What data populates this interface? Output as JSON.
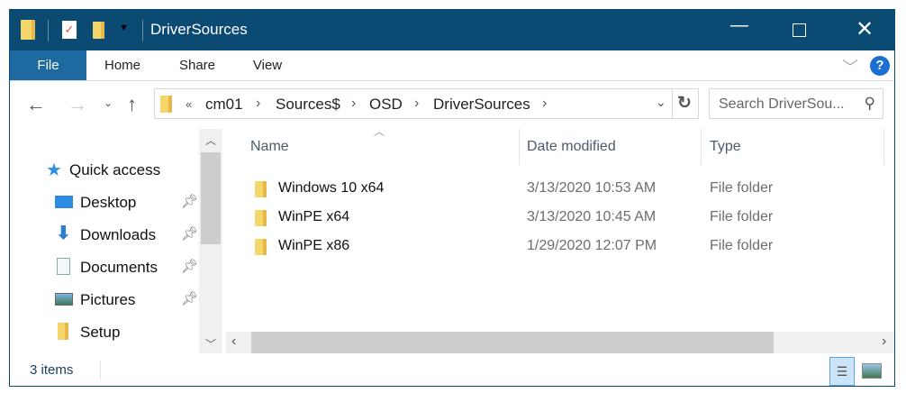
{
  "window": {
    "title": "DriverSources",
    "controls": [
      "minimize",
      "maximize",
      "close"
    ]
  },
  "ribbon": {
    "tabs": [
      "File",
      "Home",
      "Share",
      "View"
    ],
    "help": "?"
  },
  "address": {
    "overflow": "«",
    "crumbs": [
      "cm01",
      "Sources$",
      "OSD",
      "DriverSources"
    ]
  },
  "search": {
    "placeholder": "Search DriverSou..."
  },
  "nav": {
    "items": [
      {
        "label": "Quick access",
        "icon": "star-icon",
        "pinned": false
      },
      {
        "label": "Desktop",
        "icon": "desktop-icon",
        "pinned": true
      },
      {
        "label": "Downloads",
        "icon": "download-icon",
        "pinned": true
      },
      {
        "label": "Documents",
        "icon": "documents-icon",
        "pinned": true
      },
      {
        "label": "Pictures",
        "icon": "pictures-icon",
        "pinned": true
      },
      {
        "label": "Setup",
        "icon": "folder-icon",
        "pinned": false
      }
    ]
  },
  "columns": [
    "Name",
    "Date modified",
    "Type"
  ],
  "files": [
    {
      "name": "Windows 10 x64",
      "date": "3/13/2020 10:53 AM",
      "type": "File folder"
    },
    {
      "name": "WinPE x64",
      "date": "3/13/2020 10:45 AM",
      "type": "File folder"
    },
    {
      "name": "WinPE x86",
      "date": "1/29/2020 12:07 PM",
      "type": "File folder"
    }
  ],
  "status": {
    "count": "3 items"
  },
  "colors": {
    "titlebar": "#0b4a72",
    "file_tab": "#1e6aa0"
  }
}
